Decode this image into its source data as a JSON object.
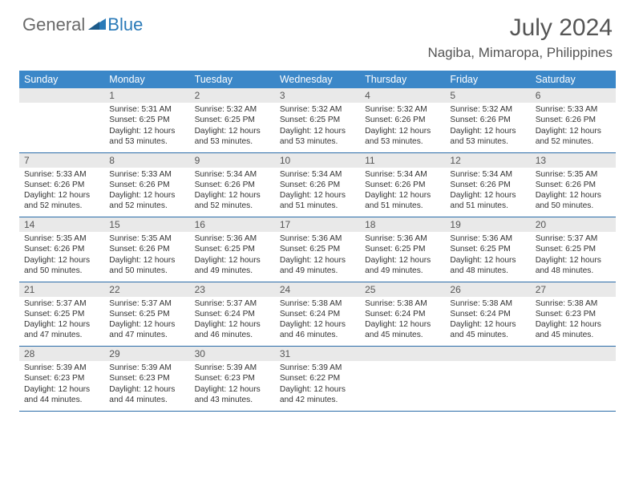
{
  "logo": {
    "text_general": "General",
    "text_blue": "Blue"
  },
  "title": "July 2024",
  "location": "Nagiba, Mimaropa, Philippines",
  "colors": {
    "header_bg": "#3b87c8",
    "header_text": "#ffffff",
    "daynum_bg": "#e9e9e9",
    "cell_border": "#2a6ca8",
    "body_text": "#333333",
    "title_text": "#555555",
    "logo_gray": "#6a6a6a",
    "logo_blue": "#2a7ab8"
  },
  "typography": {
    "title_fontsize": 30,
    "location_fontsize": 17,
    "weekday_fontsize": 12.5,
    "daynum_fontsize": 12,
    "cell_fontsize": 10.2
  },
  "weekdays": [
    "Sunday",
    "Monday",
    "Tuesday",
    "Wednesday",
    "Thursday",
    "Friday",
    "Saturday"
  ],
  "weeks": [
    [
      null,
      {
        "n": "1",
        "sr": "Sunrise: 5:31 AM",
        "ss": "Sunset: 6:25 PM",
        "d1": "Daylight: 12 hours",
        "d2": "and 53 minutes."
      },
      {
        "n": "2",
        "sr": "Sunrise: 5:32 AM",
        "ss": "Sunset: 6:25 PM",
        "d1": "Daylight: 12 hours",
        "d2": "and 53 minutes."
      },
      {
        "n": "3",
        "sr": "Sunrise: 5:32 AM",
        "ss": "Sunset: 6:25 PM",
        "d1": "Daylight: 12 hours",
        "d2": "and 53 minutes."
      },
      {
        "n": "4",
        "sr": "Sunrise: 5:32 AM",
        "ss": "Sunset: 6:26 PM",
        "d1": "Daylight: 12 hours",
        "d2": "and 53 minutes."
      },
      {
        "n": "5",
        "sr": "Sunrise: 5:32 AM",
        "ss": "Sunset: 6:26 PM",
        "d1": "Daylight: 12 hours",
        "d2": "and 53 minutes."
      },
      {
        "n": "6",
        "sr": "Sunrise: 5:33 AM",
        "ss": "Sunset: 6:26 PM",
        "d1": "Daylight: 12 hours",
        "d2": "and 52 minutes."
      }
    ],
    [
      {
        "n": "7",
        "sr": "Sunrise: 5:33 AM",
        "ss": "Sunset: 6:26 PM",
        "d1": "Daylight: 12 hours",
        "d2": "and 52 minutes."
      },
      {
        "n": "8",
        "sr": "Sunrise: 5:33 AM",
        "ss": "Sunset: 6:26 PM",
        "d1": "Daylight: 12 hours",
        "d2": "and 52 minutes."
      },
      {
        "n": "9",
        "sr": "Sunrise: 5:34 AM",
        "ss": "Sunset: 6:26 PM",
        "d1": "Daylight: 12 hours",
        "d2": "and 52 minutes."
      },
      {
        "n": "10",
        "sr": "Sunrise: 5:34 AM",
        "ss": "Sunset: 6:26 PM",
        "d1": "Daylight: 12 hours",
        "d2": "and 51 minutes."
      },
      {
        "n": "11",
        "sr": "Sunrise: 5:34 AM",
        "ss": "Sunset: 6:26 PM",
        "d1": "Daylight: 12 hours",
        "d2": "and 51 minutes."
      },
      {
        "n": "12",
        "sr": "Sunrise: 5:34 AM",
        "ss": "Sunset: 6:26 PM",
        "d1": "Daylight: 12 hours",
        "d2": "and 51 minutes."
      },
      {
        "n": "13",
        "sr": "Sunrise: 5:35 AM",
        "ss": "Sunset: 6:26 PM",
        "d1": "Daylight: 12 hours",
        "d2": "and 50 minutes."
      }
    ],
    [
      {
        "n": "14",
        "sr": "Sunrise: 5:35 AM",
        "ss": "Sunset: 6:26 PM",
        "d1": "Daylight: 12 hours",
        "d2": "and 50 minutes."
      },
      {
        "n": "15",
        "sr": "Sunrise: 5:35 AM",
        "ss": "Sunset: 6:26 PM",
        "d1": "Daylight: 12 hours",
        "d2": "and 50 minutes."
      },
      {
        "n": "16",
        "sr": "Sunrise: 5:36 AM",
        "ss": "Sunset: 6:25 PM",
        "d1": "Daylight: 12 hours",
        "d2": "and 49 minutes."
      },
      {
        "n": "17",
        "sr": "Sunrise: 5:36 AM",
        "ss": "Sunset: 6:25 PM",
        "d1": "Daylight: 12 hours",
        "d2": "and 49 minutes."
      },
      {
        "n": "18",
        "sr": "Sunrise: 5:36 AM",
        "ss": "Sunset: 6:25 PM",
        "d1": "Daylight: 12 hours",
        "d2": "and 49 minutes."
      },
      {
        "n": "19",
        "sr": "Sunrise: 5:36 AM",
        "ss": "Sunset: 6:25 PM",
        "d1": "Daylight: 12 hours",
        "d2": "and 48 minutes."
      },
      {
        "n": "20",
        "sr": "Sunrise: 5:37 AM",
        "ss": "Sunset: 6:25 PM",
        "d1": "Daylight: 12 hours",
        "d2": "and 48 minutes."
      }
    ],
    [
      {
        "n": "21",
        "sr": "Sunrise: 5:37 AM",
        "ss": "Sunset: 6:25 PM",
        "d1": "Daylight: 12 hours",
        "d2": "and 47 minutes."
      },
      {
        "n": "22",
        "sr": "Sunrise: 5:37 AM",
        "ss": "Sunset: 6:25 PM",
        "d1": "Daylight: 12 hours",
        "d2": "and 47 minutes."
      },
      {
        "n": "23",
        "sr": "Sunrise: 5:37 AM",
        "ss": "Sunset: 6:24 PM",
        "d1": "Daylight: 12 hours",
        "d2": "and 46 minutes."
      },
      {
        "n": "24",
        "sr": "Sunrise: 5:38 AM",
        "ss": "Sunset: 6:24 PM",
        "d1": "Daylight: 12 hours",
        "d2": "and 46 minutes."
      },
      {
        "n": "25",
        "sr": "Sunrise: 5:38 AM",
        "ss": "Sunset: 6:24 PM",
        "d1": "Daylight: 12 hours",
        "d2": "and 45 minutes."
      },
      {
        "n": "26",
        "sr": "Sunrise: 5:38 AM",
        "ss": "Sunset: 6:24 PM",
        "d1": "Daylight: 12 hours",
        "d2": "and 45 minutes."
      },
      {
        "n": "27",
        "sr": "Sunrise: 5:38 AM",
        "ss": "Sunset: 6:23 PM",
        "d1": "Daylight: 12 hours",
        "d2": "and 45 minutes."
      }
    ],
    [
      {
        "n": "28",
        "sr": "Sunrise: 5:39 AM",
        "ss": "Sunset: 6:23 PM",
        "d1": "Daylight: 12 hours",
        "d2": "and 44 minutes."
      },
      {
        "n": "29",
        "sr": "Sunrise: 5:39 AM",
        "ss": "Sunset: 6:23 PM",
        "d1": "Daylight: 12 hours",
        "d2": "and 44 minutes."
      },
      {
        "n": "30",
        "sr": "Sunrise: 5:39 AM",
        "ss": "Sunset: 6:23 PM",
        "d1": "Daylight: 12 hours",
        "d2": "and 43 minutes."
      },
      {
        "n": "31",
        "sr": "Sunrise: 5:39 AM",
        "ss": "Sunset: 6:22 PM",
        "d1": "Daylight: 12 hours",
        "d2": "and 42 minutes."
      },
      null,
      null,
      null
    ]
  ]
}
